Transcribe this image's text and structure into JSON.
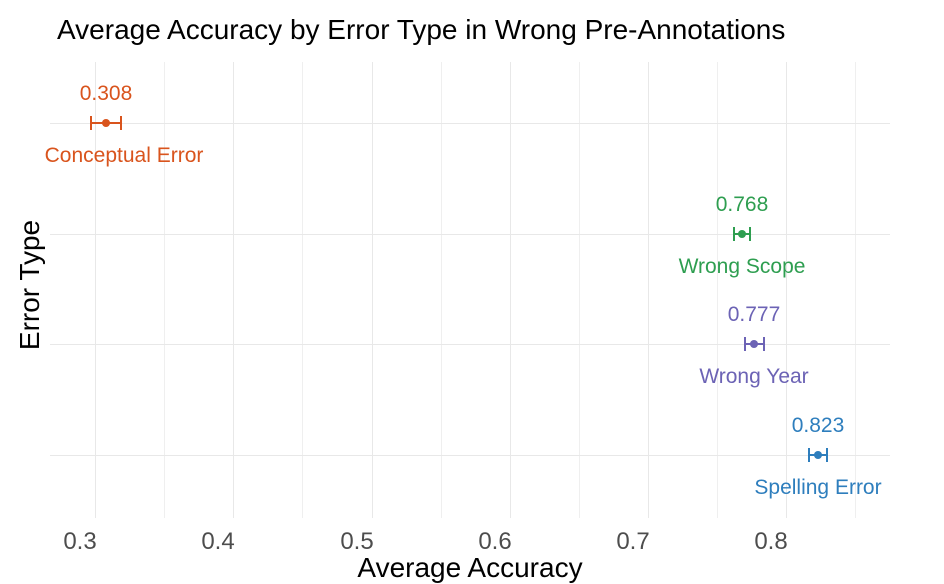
{
  "chart_data": {
    "type": "scatter",
    "subtype": "horizontal dot plot with error bars (ggplot style)",
    "title": "Average Accuracy by Error Type in Wrong Pre-Annotations",
    "xlabel": "Average Accuracy",
    "ylabel": "Error Type",
    "xlim": [
      0.266,
      0.879
    ],
    "x_major_ticks": [
      0.3,
      0.4,
      0.5,
      0.6,
      0.7,
      0.8
    ],
    "x_major_tick_labels": [
      "0.3",
      "0.4",
      "0.5",
      "0.6",
      "0.7",
      "0.8"
    ],
    "x_minor_ticks": [
      0.35,
      0.45,
      0.55,
      0.65,
      0.75,
      0.85
    ],
    "grid": "vertical major+minor gridlines; one horizontal gridline per category row; no axis lines; white background",
    "legend": "none",
    "categories_top_to_bottom": [
      "Conceptual Error",
      "Wrong Scope",
      "Wrong Year",
      "Spelling Error"
    ],
    "points": [
      {
        "category": "Conceptual Error",
        "value": 0.308,
        "value_label": "0.308",
        "error": 0.011,
        "color": "#d9541d",
        "category_label_nudge_x": 18
      },
      {
        "category": "Wrong Scope",
        "value": 0.768,
        "value_label": "0.768",
        "error": 0.006,
        "color": "#2e9e50",
        "category_label_nudge_x": 0
      },
      {
        "category": "Wrong Year",
        "value": 0.777,
        "value_label": "0.777",
        "error": 0.007,
        "color": "#6c63b5",
        "category_label_nudge_x": 0
      },
      {
        "category": "Spelling Error",
        "value": 0.823,
        "value_label": "0.823",
        "error": 0.0065,
        "color": "#2e7ebd",
        "category_label_nudge_x": 0
      }
    ],
    "colors": {
      "tick_label": "#4d4d4d",
      "gridline_major": "#e8e8e8",
      "gridline_minor": "#efefef",
      "background": "#ffffff",
      "text": "#000000"
    }
  }
}
